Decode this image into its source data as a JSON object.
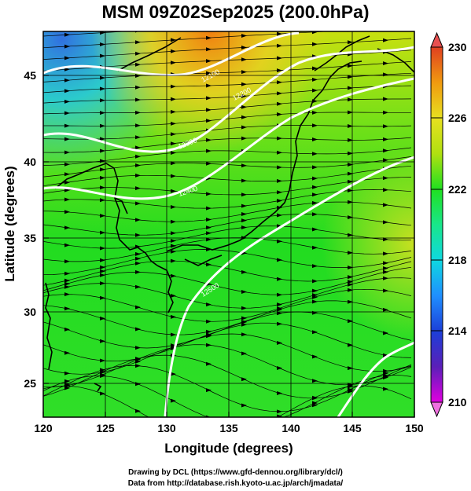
{
  "title": "MSM 09Z02Sep2025 (200.0hPa)",
  "credits": {
    "line1": "Drawing by DCL (https://www.gfd-dennou.org/library/dcl/)",
    "line2": "Data from http://database.rish.kyoto-u.ac.jp/arch/jmadata/"
  },
  "map": {
    "xlabel": "Longitude (degrees)",
    "ylabel": "Latitude  (degrees)",
    "lon_range": [
      120,
      150
    ],
    "lat_range": [
      22.4,
      47.6
    ],
    "lon_ticks": [
      "120",
      "125",
      "130",
      "135",
      "140",
      "145",
      "150"
    ],
    "lat_ticks": [
      "25",
      "30",
      "35",
      "40",
      "45"
    ],
    "contour_labels": [
      "12100",
      "12200",
      "12300",
      "12400",
      "12500"
    ]
  },
  "colorbar": {
    "ticks": [
      "210",
      "214",
      "218",
      "222",
      "226",
      "230"
    ],
    "min": 210,
    "max": 230,
    "colors": [
      "#e000e0",
      "#5a1fb8",
      "#1c3fd8",
      "#1f8fff",
      "#0fd8e0",
      "#19e68a",
      "#20e020",
      "#b0e010",
      "#e8e020",
      "#f09a10",
      "#e04020"
    ]
  }
}
